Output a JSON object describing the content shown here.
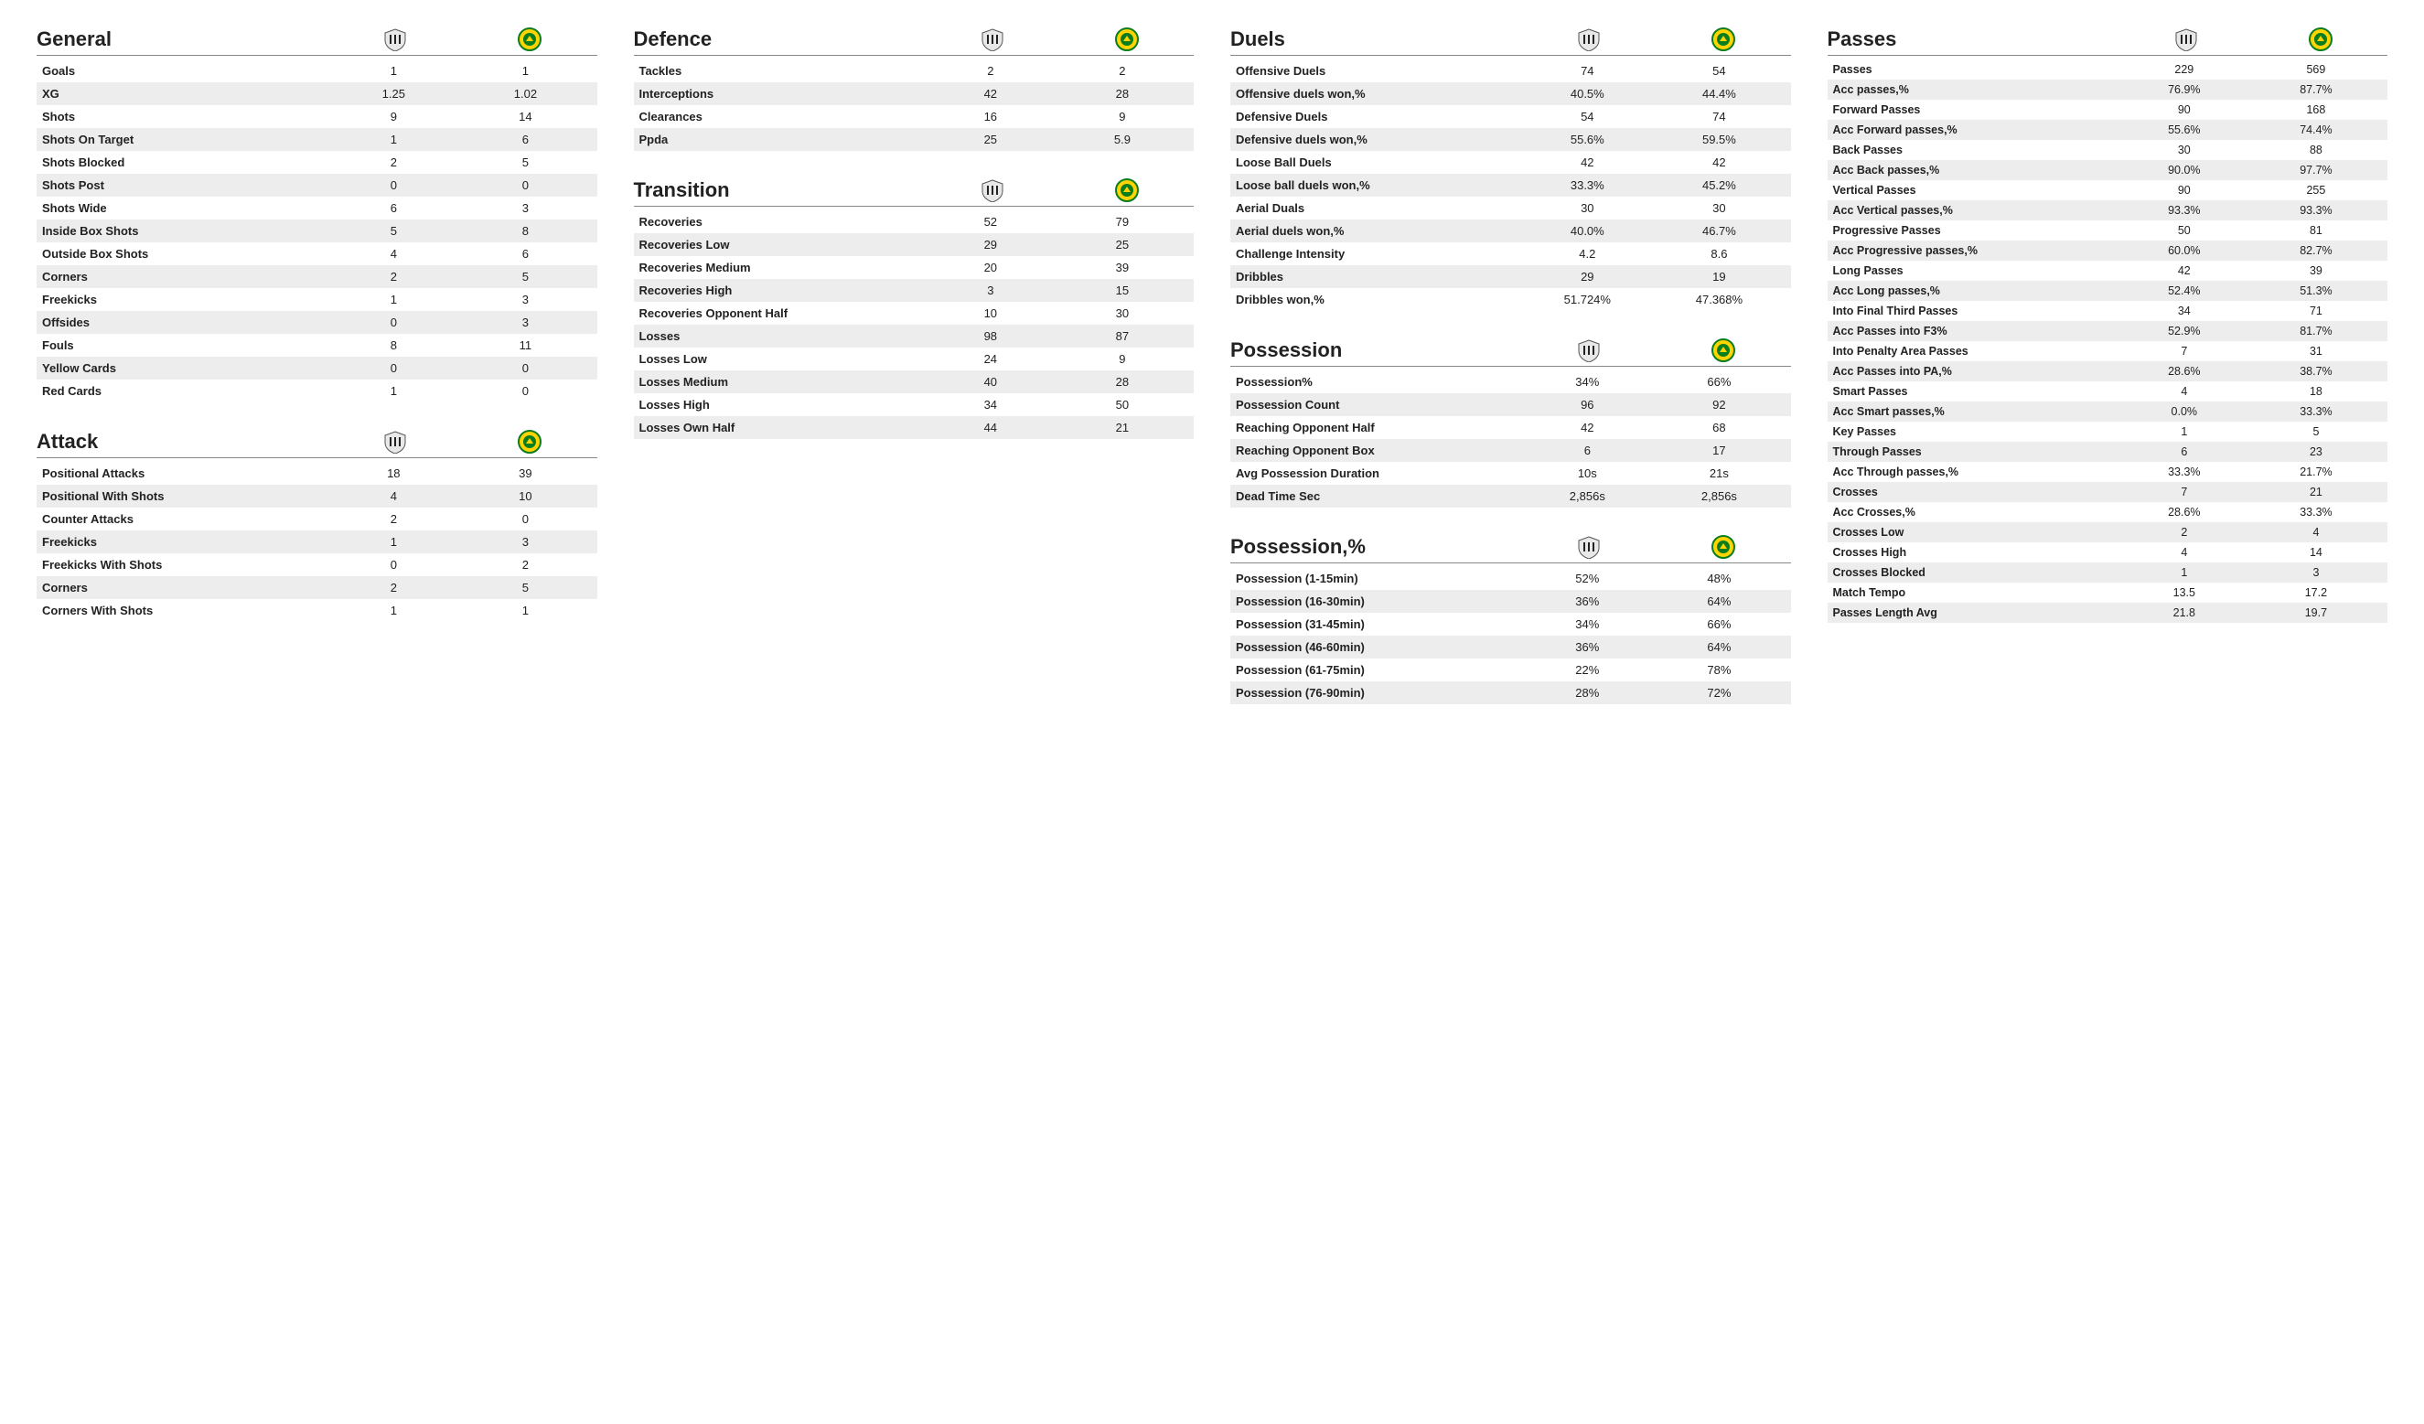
{
  "teams": {
    "teamA_name": "team-a",
    "teamB_name": "team-b"
  },
  "columns": [
    {
      "column_id": "col-1",
      "tight": false,
      "sections": [
        {
          "title": "General",
          "rows": [
            {
              "label": "Goals",
              "a": "1",
              "b": "1"
            },
            {
              "label": "XG",
              "a": "1.25",
              "b": "1.02"
            },
            {
              "label": "Shots",
              "a": "9",
              "b": "14"
            },
            {
              "label": "Shots On Target",
              "a": "1",
              "b": "6"
            },
            {
              "label": "Shots Blocked",
              "a": "2",
              "b": "5"
            },
            {
              "label": "Shots Post",
              "a": "0",
              "b": "0"
            },
            {
              "label": "Shots Wide",
              "a": "6",
              "b": "3"
            },
            {
              "label": "Inside Box Shots",
              "a": "5",
              "b": "8"
            },
            {
              "label": "Outside Box Shots",
              "a": "4",
              "b": "6"
            },
            {
              "label": "Corners",
              "a": "2",
              "b": "5"
            },
            {
              "label": "Freekicks",
              "a": "1",
              "b": "3"
            },
            {
              "label": "Offsides",
              "a": "0",
              "b": "3"
            },
            {
              "label": "Fouls",
              "a": "8",
              "b": "11"
            },
            {
              "label": "Yellow Cards",
              "a": "0",
              "b": "0"
            },
            {
              "label": "Red Cards",
              "a": "1",
              "b": "0"
            }
          ]
        },
        {
          "title": "Attack",
          "rows": [
            {
              "label": "Positional Attacks",
              "a": "18",
              "b": "39"
            },
            {
              "label": "Positional With Shots",
              "a": "4",
              "b": "10"
            },
            {
              "label": "Counter Attacks",
              "a": "2",
              "b": "0"
            },
            {
              "label": "Freekicks",
              "a": "1",
              "b": "3"
            },
            {
              "label": "Freekicks With Shots",
              "a": "0",
              "b": "2"
            },
            {
              "label": "Corners",
              "a": "2",
              "b": "5"
            },
            {
              "label": "Corners With Shots",
              "a": "1",
              "b": "1"
            }
          ]
        }
      ]
    },
    {
      "column_id": "col-2",
      "tight": false,
      "sections": [
        {
          "title": "Defence",
          "rows": [
            {
              "label": "Tackles",
              "a": "2",
              "b": "2"
            },
            {
              "label": "Interceptions",
              "a": "42",
              "b": "28"
            },
            {
              "label": "Clearances",
              "a": "16",
              "b": "9"
            },
            {
              "label": "Ppda",
              "a": "25",
              "b": "5.9"
            }
          ]
        },
        {
          "title": "Transition",
          "rows": [
            {
              "label": "Recoveries",
              "a": "52",
              "b": "79"
            },
            {
              "label": "Recoveries Low",
              "a": "29",
              "b": "25"
            },
            {
              "label": "Recoveries Medium",
              "a": "20",
              "b": "39"
            },
            {
              "label": "Recoveries High",
              "a": "3",
              "b": "15"
            },
            {
              "label": "Recoveries Opponent Half",
              "a": "10",
              "b": "30"
            },
            {
              "label": "Losses",
              "a": "98",
              "b": "87"
            },
            {
              "label": "Losses Low",
              "a": "24",
              "b": "9"
            },
            {
              "label": "Losses Medium",
              "a": "40",
              "b": "28"
            },
            {
              "label": "Losses High",
              "a": "34",
              "b": "50"
            },
            {
              "label": "Losses Own Half",
              "a": "44",
              "b": "21"
            }
          ]
        }
      ]
    },
    {
      "column_id": "col-3",
      "tight": false,
      "sections": [
        {
          "title": "Duels",
          "rows": [
            {
              "label": "Offensive Duels",
              "a": "74",
              "b": "54"
            },
            {
              "label": "Offensive duels won,%",
              "a": "40.5%",
              "b": "44.4%"
            },
            {
              "label": "Defensive Duels",
              "a": "54",
              "b": "74"
            },
            {
              "label": "Defensive duels won,%",
              "a": "55.6%",
              "b": "59.5%"
            },
            {
              "label": "Loose Ball Duels",
              "a": "42",
              "b": "42"
            },
            {
              "label": "Loose ball duels won,%",
              "a": "33.3%",
              "b": "45.2%"
            },
            {
              "label": "Aerial Duals",
              "a": "30",
              "b": "30"
            },
            {
              "label": "Aerial duels won,%",
              "a": "40.0%",
              "b": "46.7%"
            },
            {
              "label": "Challenge Intensity",
              "a": "4.2",
              "b": "8.6"
            },
            {
              "label": "Dribbles",
              "a": "29",
              "b": "19"
            },
            {
              "label": "Dribbles won,%",
              "a": "51.724%",
              "b": "47.368%"
            }
          ]
        },
        {
          "title": "Possession",
          "rows": [
            {
              "label": "Possession%",
              "a": "34%",
              "b": "66%"
            },
            {
              "label": "Possession Count",
              "a": "96",
              "b": "92"
            },
            {
              "label": "Reaching Opponent Half",
              "a": "42",
              "b": "68"
            },
            {
              "label": "Reaching Opponent Box",
              "a": "6",
              "b": "17"
            },
            {
              "label": "Avg Possession Duration",
              "a": "10s",
              "b": "21s"
            },
            {
              "label": "Dead Time Sec",
              "a": "2,856s",
              "b": "2,856s"
            }
          ]
        },
        {
          "title": "Possession,%",
          "rows": [
            {
              "label": "Possession (1-15min)",
              "a": "52%",
              "b": "48%"
            },
            {
              "label": "Possession (16-30min)",
              "a": "36%",
              "b": "64%"
            },
            {
              "label": "Possession (31-45min)",
              "a": "34%",
              "b": "66%"
            },
            {
              "label": "Possession (46-60min)",
              "a": "36%",
              "b": "64%"
            },
            {
              "label": "Possession (61-75min)",
              "a": "22%",
              "b": "78%"
            },
            {
              "label": "Possession (76-90min)",
              "a": "28%",
              "b": "72%"
            }
          ]
        }
      ]
    },
    {
      "column_id": "col-4",
      "tight": true,
      "sections": [
        {
          "title": "Passes",
          "rows": [
            {
              "label": "Passes",
              "a": "229",
              "b": "569"
            },
            {
              "label": "Acc passes,%",
              "a": "76.9%",
              "b": "87.7%"
            },
            {
              "label": "Forward Passes",
              "a": "90",
              "b": "168"
            },
            {
              "label": "Acc Forward passes,%",
              "a": "55.6%",
              "b": "74.4%"
            },
            {
              "label": "Back Passes",
              "a": "30",
              "b": "88"
            },
            {
              "label": "Acc Back passes,%",
              "a": "90.0%",
              "b": "97.7%"
            },
            {
              "label": "Vertical Passes",
              "a": "90",
              "b": "255"
            },
            {
              "label": "Acc Vertical passes,%",
              "a": "93.3%",
              "b": "93.3%"
            },
            {
              "label": "Progressive Passes",
              "a": "50",
              "b": "81"
            },
            {
              "label": "Acc Progressive passes,%",
              "a": "60.0%",
              "b": "82.7%"
            },
            {
              "label": "Long Passes",
              "a": "42",
              "b": "39"
            },
            {
              "label": "Acc Long passes,%",
              "a": "52.4%",
              "b": "51.3%"
            },
            {
              "label": "Into Final Third Passes",
              "a": "34",
              "b": "71"
            },
            {
              "label": "Acc Passes into F3%",
              "a": "52.9%",
              "b": "81.7%"
            },
            {
              "label": "Into Penalty Area Passes",
              "a": "7",
              "b": "31"
            },
            {
              "label": "Acc Passes into PA,%",
              "a": "28.6%",
              "b": "38.7%"
            },
            {
              "label": "Smart Passes",
              "a": "4",
              "b": "18"
            },
            {
              "label": "Acc Smart passes,%",
              "a": "0.0%",
              "b": "33.3%"
            },
            {
              "label": "Key Passes",
              "a": "1",
              "b": "5"
            },
            {
              "label": "Through Passes",
              "a": "6",
              "b": "23"
            },
            {
              "label": "Acc Through passes,%",
              "a": "33.3%",
              "b": "21.7%"
            },
            {
              "label": "Crosses",
              "a": "7",
              "b": "21"
            },
            {
              "label": "Acc Crosses,%",
              "a": "28.6%",
              "b": "33.3%"
            },
            {
              "label": "Crosses Low",
              "a": "2",
              "b": "4"
            },
            {
              "label": "Crosses High",
              "a": "4",
              "b": "14"
            },
            {
              "label": "Crosses Blocked",
              "a": "1",
              "b": "3"
            },
            {
              "label": "Match Tempo",
              "a": "13.5",
              "b": "17.2"
            },
            {
              "label": "Passes Length Avg",
              "a": "21.8",
              "b": "19.7"
            }
          ]
        }
      ]
    }
  ]
}
